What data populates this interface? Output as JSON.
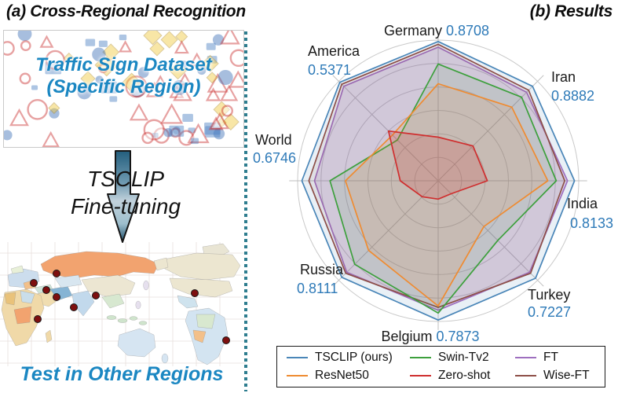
{
  "panel_a": {
    "title": "(a) Cross-Regional Recognition",
    "dataset_caption_line1": "Traffic Sign Dataset",
    "dataset_caption_line2": "(Specific Region)",
    "arrow_label_line1": "TSCLIP",
    "arrow_label_line2": "Fine-tuning",
    "map_caption": "Test in Other Regions",
    "caption_color": "#1b87c2"
  },
  "panel_b": {
    "title": "(b) Results"
  },
  "chart_data": {
    "type": "radar",
    "title": "(b) Results",
    "axes": [
      "Germany",
      "Iran",
      "India",
      "Turkey",
      "Belgium",
      "Russia",
      "World",
      "America"
    ],
    "annotated_series": "TSCLIP (ours)",
    "annotated_values": [
      "0.8708",
      "0.8882",
      "0.8133",
      "0.7227",
      "0.7873",
      "0.8111",
      "0.6746",
      "0.5371"
    ],
    "radial_scale": "per-axis normalized, fractions of outer ring",
    "rings": 6,
    "grid": true,
    "legend_position": "bottom",
    "series": [
      {
        "name": "TSCLIP (ours)",
        "color": "#4a86b8",
        "fill_opacity": 0.12,
        "relative_radius": [
          0.99,
          0.95,
          0.97,
          0.98,
          0.99,
          0.97,
          0.97,
          0.99
        ]
      },
      {
        "name": "FT",
        "color": "#9e6fbf",
        "fill_opacity": 0.2,
        "relative_radius": [
          0.95,
          0.89,
          0.92,
          0.92,
          0.92,
          0.92,
          0.88,
          0.95
        ]
      },
      {
        "name": "Wise-FT",
        "color": "#8d4f48",
        "fill_opacity": 0.1,
        "relative_radius": [
          0.97,
          0.91,
          0.9,
          0.93,
          0.9,
          0.93,
          0.92,
          0.97
        ]
      },
      {
        "name": "Swin-Tv2",
        "color": "#3da03d",
        "fill_opacity": 0.1,
        "relative_radius": [
          0.83,
          0.84,
          0.84,
          0.6,
          0.94,
          0.84,
          0.77,
          0.41
        ]
      },
      {
        "name": "ResNet50",
        "color": "#ef8b31",
        "fill_opacity": 0.13,
        "relative_radius": [
          0.69,
          0.74,
          0.78,
          0.46,
          0.89,
          0.7,
          0.66,
          0.46
        ]
      },
      {
        "name": "Zero-shot",
        "color": "#cf2f2f",
        "fill_opacity": 0.18,
        "relative_radius": [
          0.31,
          0.35,
          0.35,
          0.13,
          0.13,
          0.16,
          0.27,
          0.5
        ]
      }
    ]
  },
  "legend": {
    "items": [
      {
        "label": "TSCLIP (ours)",
        "color": "#4a86b8"
      },
      {
        "label": "ResNet50",
        "color": "#ef8b31"
      },
      {
        "label": "Swin-Tv2",
        "color": "#3da03d"
      },
      {
        "label": "Zero-shot",
        "color": "#cf2f2f"
      },
      {
        "label": "FT",
        "color": "#9e6fbf"
      },
      {
        "label": "Wise-FT",
        "color": "#8d4f48"
      }
    ]
  },
  "colors": {
    "axis_value_text": "#2e7ab8",
    "divider_teal": "#2e7d8f",
    "grid_gray": "#c9c9c9"
  }
}
